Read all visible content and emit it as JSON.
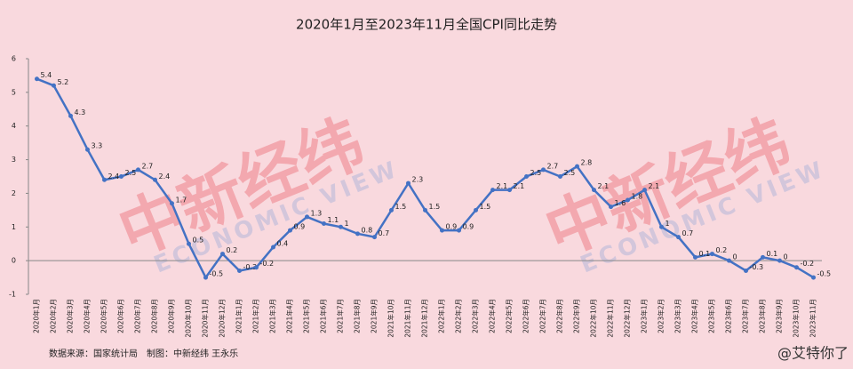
{
  "chart_data": {
    "type": "line",
    "title": "2020年1月至2023年11月全国CPI同比走势",
    "categories": [
      "2020年1月",
      "2020年2月",
      "2020年3月",
      "2020年4月",
      "2020年5月",
      "2020年6月",
      "2020年7月",
      "2020年8月",
      "2020年9月",
      "2020年10月",
      "2020年11月",
      "2020年12月",
      "2021年1月",
      "2021年2月",
      "2021年3月",
      "2021年4月",
      "2021年5月",
      "2021年6月",
      "2021年7月",
      "2021年8月",
      "2021年9月",
      "2021年10月",
      "2021年11月",
      "2021年12月",
      "2022年1月",
      "2022年2月",
      "2022年3月",
      "2022年4月",
      "2022年5月",
      "2022年6月",
      "2022年7月",
      "2022年8月",
      "2022年9月",
      "2022年10月",
      "2022年11月",
      "2022年12月",
      "2023年1月",
      "2023年2月",
      "2023年3月",
      "2023年4月",
      "2023年5月",
      "2023年6月",
      "2023年7月",
      "2023年8月",
      "2023年9月",
      "2023年10月",
      "2023年11月"
    ],
    "values": [
      5.4,
      5.2,
      4.3,
      3.3,
      2.4,
      2.5,
      2.7,
      2.4,
      1.7,
      0.5,
      -0.5,
      0.2,
      -0.3,
      -0.2,
      0.4,
      0.9,
      1.3,
      1.1,
      1,
      0.8,
      0.7,
      1.5,
      2.3,
      1.5,
      0.9,
      0.9,
      1.5,
      2.1,
      2.1,
      2.5,
      2.7,
      2.5,
      2.8,
      2.1,
      1.6,
      1.8,
      2.1,
      1,
      0.7,
      0.1,
      0.2,
      0,
      -0.3,
      0.1,
      0,
      -0.2,
      -0.5
    ],
    "color": "#4472c4",
    "ylim": [
      -1,
      6
    ],
    "yticks": [
      -1,
      0,
      1,
      2,
      3,
      4,
      5,
      6
    ],
    "source": "数据来源：国家统计局　制图：中新经纬 王永乐",
    "watermark": {
      "cn": "中新经纬",
      "en": "ECONOMIC VIEW",
      "weibo": "@艾特你了"
    }
  }
}
